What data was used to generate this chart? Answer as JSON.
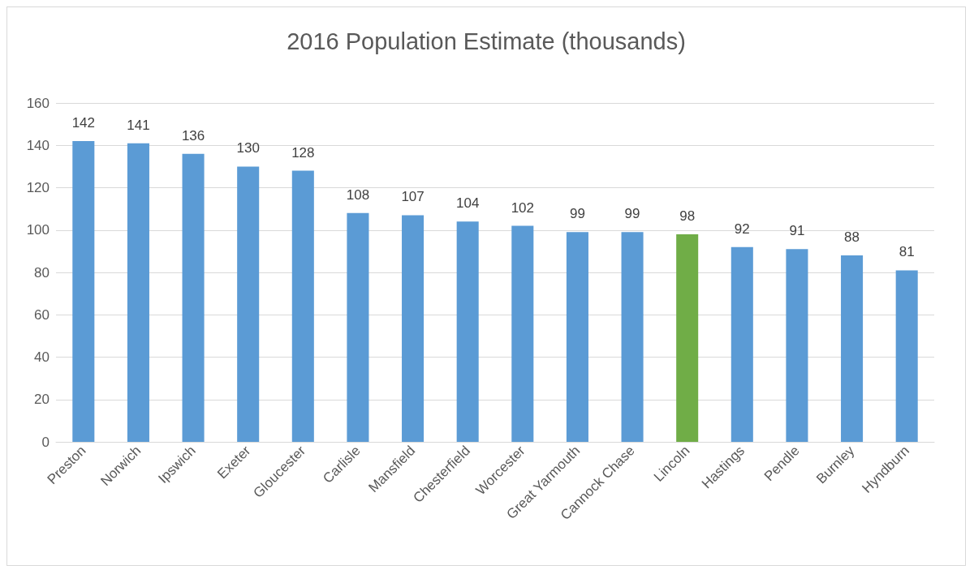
{
  "chart_data": {
    "type": "bar",
    "title": "2016 Population Estimate (thousands)",
    "categories": [
      "Preston",
      "Norwich",
      "Ipswich",
      "Exeter",
      "Gloucester",
      "Carlisle",
      "Mansfield",
      "Chesterfield",
      "Worcester",
      "Great Yarmouth",
      "Cannock Chase",
      "Lincoln",
      "Hastings",
      "Pendle",
      "Burnley",
      "Hyndburn"
    ],
    "values": [
      142,
      141,
      136,
      130,
      128,
      108,
      107,
      104,
      102,
      99,
      99,
      98,
      92,
      91,
      88,
      81
    ],
    "colors": [
      "#5b9bd5",
      "#5b9bd5",
      "#5b9bd5",
      "#5b9bd5",
      "#5b9bd5",
      "#5b9bd5",
      "#5b9bd5",
      "#5b9bd5",
      "#5b9bd5",
      "#5b9bd5",
      "#5b9bd5",
      "#70ad47",
      "#5b9bd5",
      "#5b9bd5",
      "#5b9bd5",
      "#5b9bd5"
    ],
    "ylim": [
      0,
      160
    ],
    "yticks": [
      0,
      20,
      40,
      60,
      80,
      100,
      120,
      140,
      160
    ],
    "grid": "y",
    "data_labels": true
  }
}
